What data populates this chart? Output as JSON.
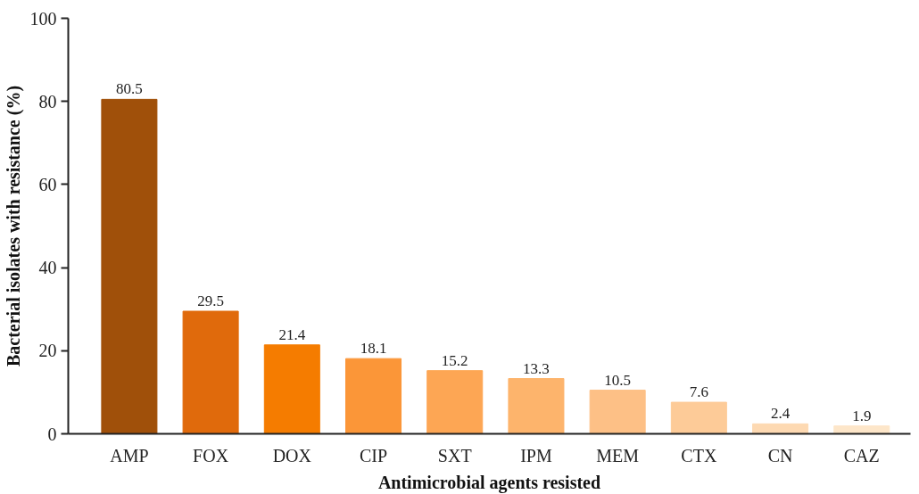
{
  "chart_data": {
    "type": "bar",
    "xlabel": "Antimicrobial agents resisted",
    "ylabel": "Bacterial isolates with resistance (%)",
    "categories": [
      "AMP",
      "FOX",
      "DOX",
      "CIP",
      "SXT",
      "IPM",
      "MEM",
      "CTX",
      "CN",
      "CAZ"
    ],
    "values": [
      80.5,
      29.5,
      21.4,
      18.1,
      15.2,
      13.3,
      10.5,
      7.6,
      2.4,
      1.9
    ],
    "colors": [
      "#a0500a",
      "#e06a0c",
      "#f57c00",
      "#fb9638",
      "#fda654",
      "#fdb46c",
      "#fdc086",
      "#fdcb98",
      "#fdd9b2",
      "#fde6c9"
    ],
    "ylim": [
      0,
      100
    ],
    "yticks": [
      0,
      20,
      40,
      60,
      80,
      100
    ],
    "grid": false,
    "data_labels": true
  }
}
